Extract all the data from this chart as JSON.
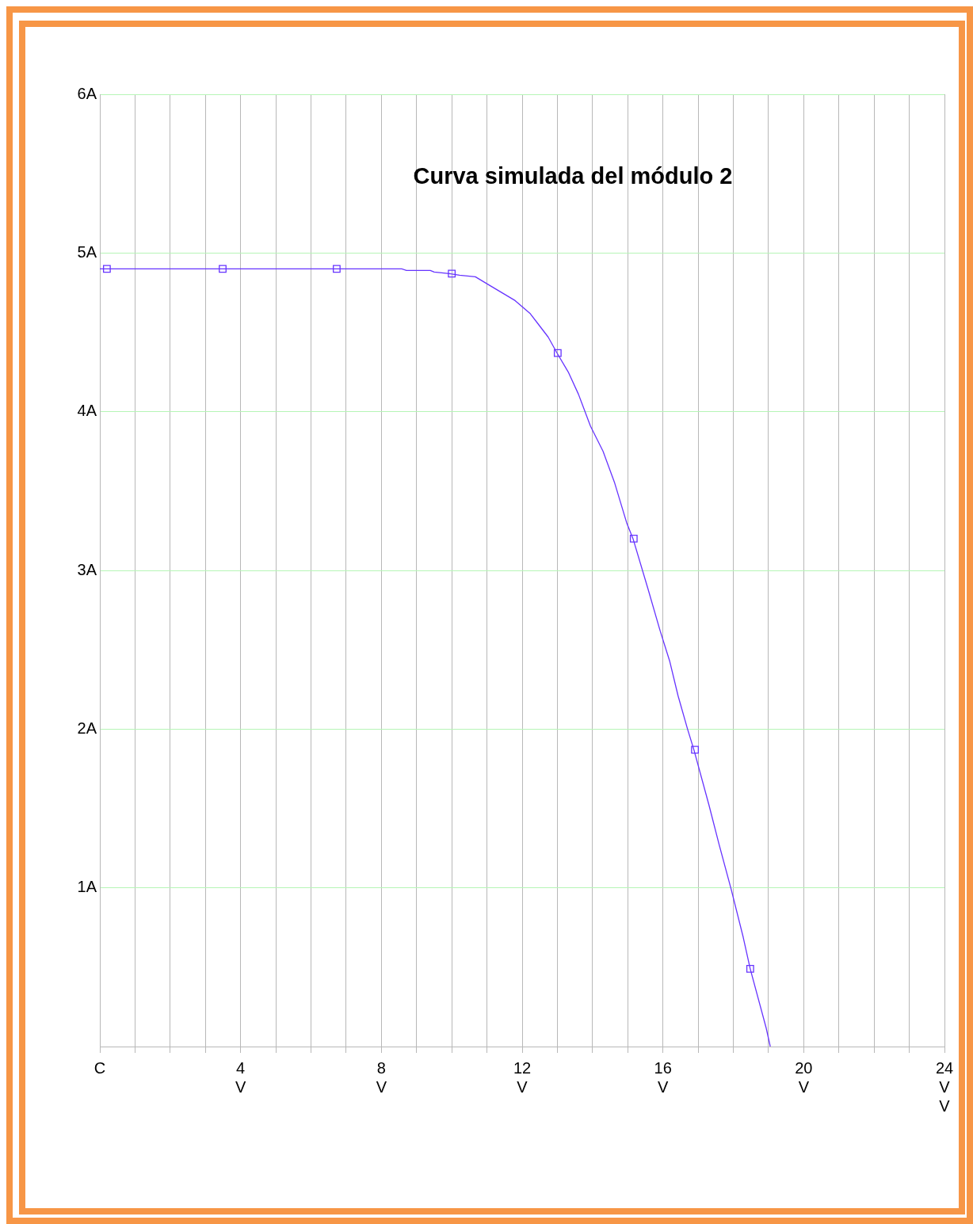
{
  "chart_data": {
    "type": "line",
    "title": "Curva simulada del módulo 2",
    "xlim": [
      0,
      24
    ],
    "ylim": [
      0,
      6
    ],
    "xticks": [
      {
        "value": 0,
        "label": "C"
      },
      {
        "value": 1,
        "label": null
      },
      {
        "value": 2,
        "label": null
      },
      {
        "value": 3,
        "label": null
      },
      {
        "value": 4,
        "label": "4\nV"
      },
      {
        "value": 5,
        "label": null
      },
      {
        "value": 6,
        "label": null
      },
      {
        "value": 7,
        "label": null
      },
      {
        "value": 8,
        "label": "8\nV"
      },
      {
        "value": 9,
        "label": null
      },
      {
        "value": 10,
        "label": null
      },
      {
        "value": 11,
        "label": null
      },
      {
        "value": 12,
        "label": "12\nV"
      },
      {
        "value": 13,
        "label": null
      },
      {
        "value": 14,
        "label": null
      },
      {
        "value": 15,
        "label": null
      },
      {
        "value": 16,
        "label": "16\nV"
      },
      {
        "value": 17,
        "label": null
      },
      {
        "value": 18,
        "label": null
      },
      {
        "value": 19,
        "label": null
      },
      {
        "value": 20,
        "label": "20\nV"
      },
      {
        "value": 21,
        "label": null
      },
      {
        "value": 22,
        "label": null
      },
      {
        "value": 23,
        "label": null
      },
      {
        "value": 24,
        "label": "24\nV\nV"
      }
    ],
    "yticks": [
      {
        "value": 0,
        "label": null
      },
      {
        "value": 1,
        "label": "1A"
      },
      {
        "value": 2,
        "label": "2A"
      },
      {
        "value": 3,
        "label": "3A"
      },
      {
        "value": 4,
        "label": "4A"
      },
      {
        "value": 5,
        "label": "5A"
      },
      {
        "value": 6,
        "label": "6A"
      }
    ],
    "grid": true,
    "series": [
      {
        "type": "line",
        "marker": "none",
        "color": "#6633ff",
        "x": [
          0,
          8.58,
          8.71,
          9.39,
          9.5,
          9.93,
          10.22,
          10.67,
          11.12,
          11.8,
          12.22,
          12.43,
          12.74,
          12.99,
          13.31,
          13.6,
          13.94,
          14.3,
          14.63,
          14.97,
          15.15,
          15.58,
          15.92,
          16.19,
          16.43,
          16.7,
          16.88,
          17.31,
          17.6,
          17.94,
          18.28,
          18.48,
          18.93,
          19.05
        ],
        "values": [
          4.9,
          4.9,
          4.89,
          4.89,
          4.88,
          4.87,
          4.86,
          4.85,
          4.79,
          4.7,
          4.62,
          4.56,
          4.47,
          4.37,
          4.25,
          4.11,
          3.91,
          3.75,
          3.55,
          3.3,
          3.2,
          2.88,
          2.62,
          2.43,
          2.21,
          2.0,
          1.87,
          1.52,
          1.27,
          0.99,
          0.69,
          0.49,
          0.12,
          0
        ]
      },
      {
        "type": "scatter",
        "marker": "square",
        "color": "#6633ff",
        "x": [
          0.2,
          3.49,
          6.73,
          10.0,
          13.01,
          15.17,
          16.91,
          18.48
        ],
        "values": [
          4.9,
          4.9,
          4.9,
          4.87,
          4.37,
          3.2,
          1.87,
          0.49
        ]
      }
    ]
  }
}
